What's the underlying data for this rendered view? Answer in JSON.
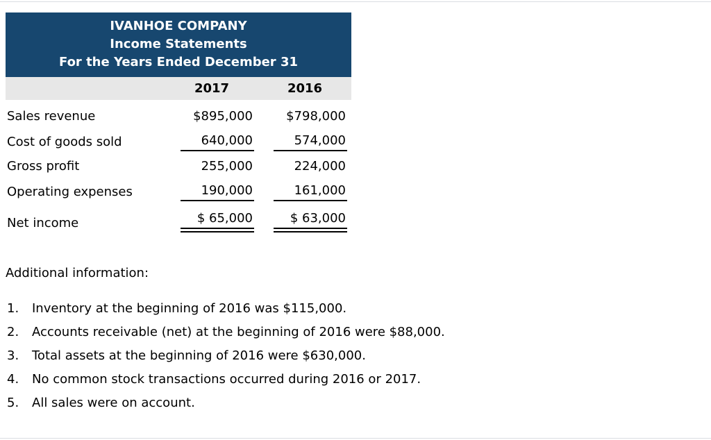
{
  "statement": {
    "company": "IVANHOE COMPANY",
    "title": "Income Statements",
    "period": "For the Years Ended December 31",
    "columns": [
      "2017",
      "2016"
    ],
    "rows": [
      {
        "label": "Sales revenue",
        "y2017": "$895,000",
        "y2016": "$798,000"
      },
      {
        "label": "Cost of goods sold",
        "y2017": "640,000",
        "y2016": "574,000"
      },
      {
        "label": "Gross profit",
        "y2017": "255,000",
        "y2016": "224,000"
      },
      {
        "label": "Operating expenses",
        "y2017": "190,000",
        "y2016": "161,000"
      },
      {
        "label": "Net income",
        "y2017": "$ 65,000",
        "y2016": "$ 63,000"
      }
    ]
  },
  "additional": {
    "heading": "Additional information:",
    "notes": [
      {
        "num": "1.",
        "text": "Inventory at the beginning of 2016 was $115,000."
      },
      {
        "num": "2.",
        "text": "Accounts receivable (net) at the beginning of 2016 were $88,000."
      },
      {
        "num": "3.",
        "text": "Total assets at the beginning of 2016 were $630,000."
      },
      {
        "num": "4.",
        "text": "No common stock transactions occurred during 2016 or 2017."
      },
      {
        "num": "5.",
        "text": "All sales were on account."
      }
    ]
  },
  "colors": {
    "header_bg": "#17476f",
    "header_text": "#ffffff",
    "col_header_bg": "#e7e7e7"
  }
}
